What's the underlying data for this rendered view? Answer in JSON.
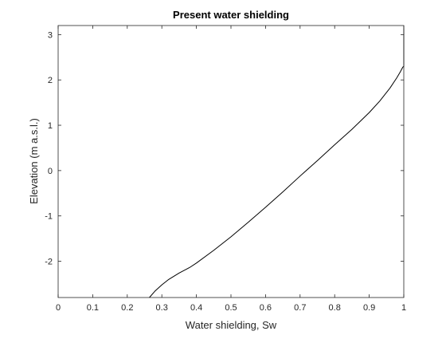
{
  "chart_data": {
    "type": "line",
    "title": "Present water shielding",
    "xlabel": "Water shielding, Sw",
    "ylabel": "Elevation (m a.s.l.)",
    "xlim": [
      0,
      1
    ],
    "ylim": [
      -2.8,
      3.2
    ],
    "xticks": [
      0,
      0.1,
      0.2,
      0.3,
      0.4,
      0.5,
      0.6,
      0.7,
      0.8,
      0.9,
      1
    ],
    "xtick_labels": [
      "0",
      "0.1",
      "0.2",
      "0.3",
      "0.4",
      "0.5",
      "0.6",
      "0.7",
      "0.8",
      "0.9",
      "1"
    ],
    "yticks": [
      -2,
      -1,
      0,
      1,
      2,
      3
    ],
    "ytick_labels": [
      "-2",
      "-1",
      "0",
      "1",
      "2",
      "3"
    ],
    "grid": false,
    "box": true,
    "series": [
      {
        "color": "#000000",
        "x": [
          0.264,
          0.28,
          0.3,
          0.32,
          0.35,
          0.38,
          0.4,
          0.45,
          0.5,
          0.55,
          0.6,
          0.65,
          0.7,
          0.75,
          0.8,
          0.85,
          0.9,
          0.93,
          0.96,
          0.98,
          0.99,
          0.997,
          1.0,
          1.0
        ],
        "y": [
          -2.8,
          -2.66,
          -2.52,
          -2.4,
          -2.26,
          -2.14,
          -2.04,
          -1.76,
          -1.46,
          -1.14,
          -0.81,
          -0.47,
          -0.12,
          0.22,
          0.57,
          0.91,
          1.28,
          1.53,
          1.82,
          2.05,
          2.18,
          2.28,
          2.3,
          3.2
        ]
      }
    ]
  }
}
